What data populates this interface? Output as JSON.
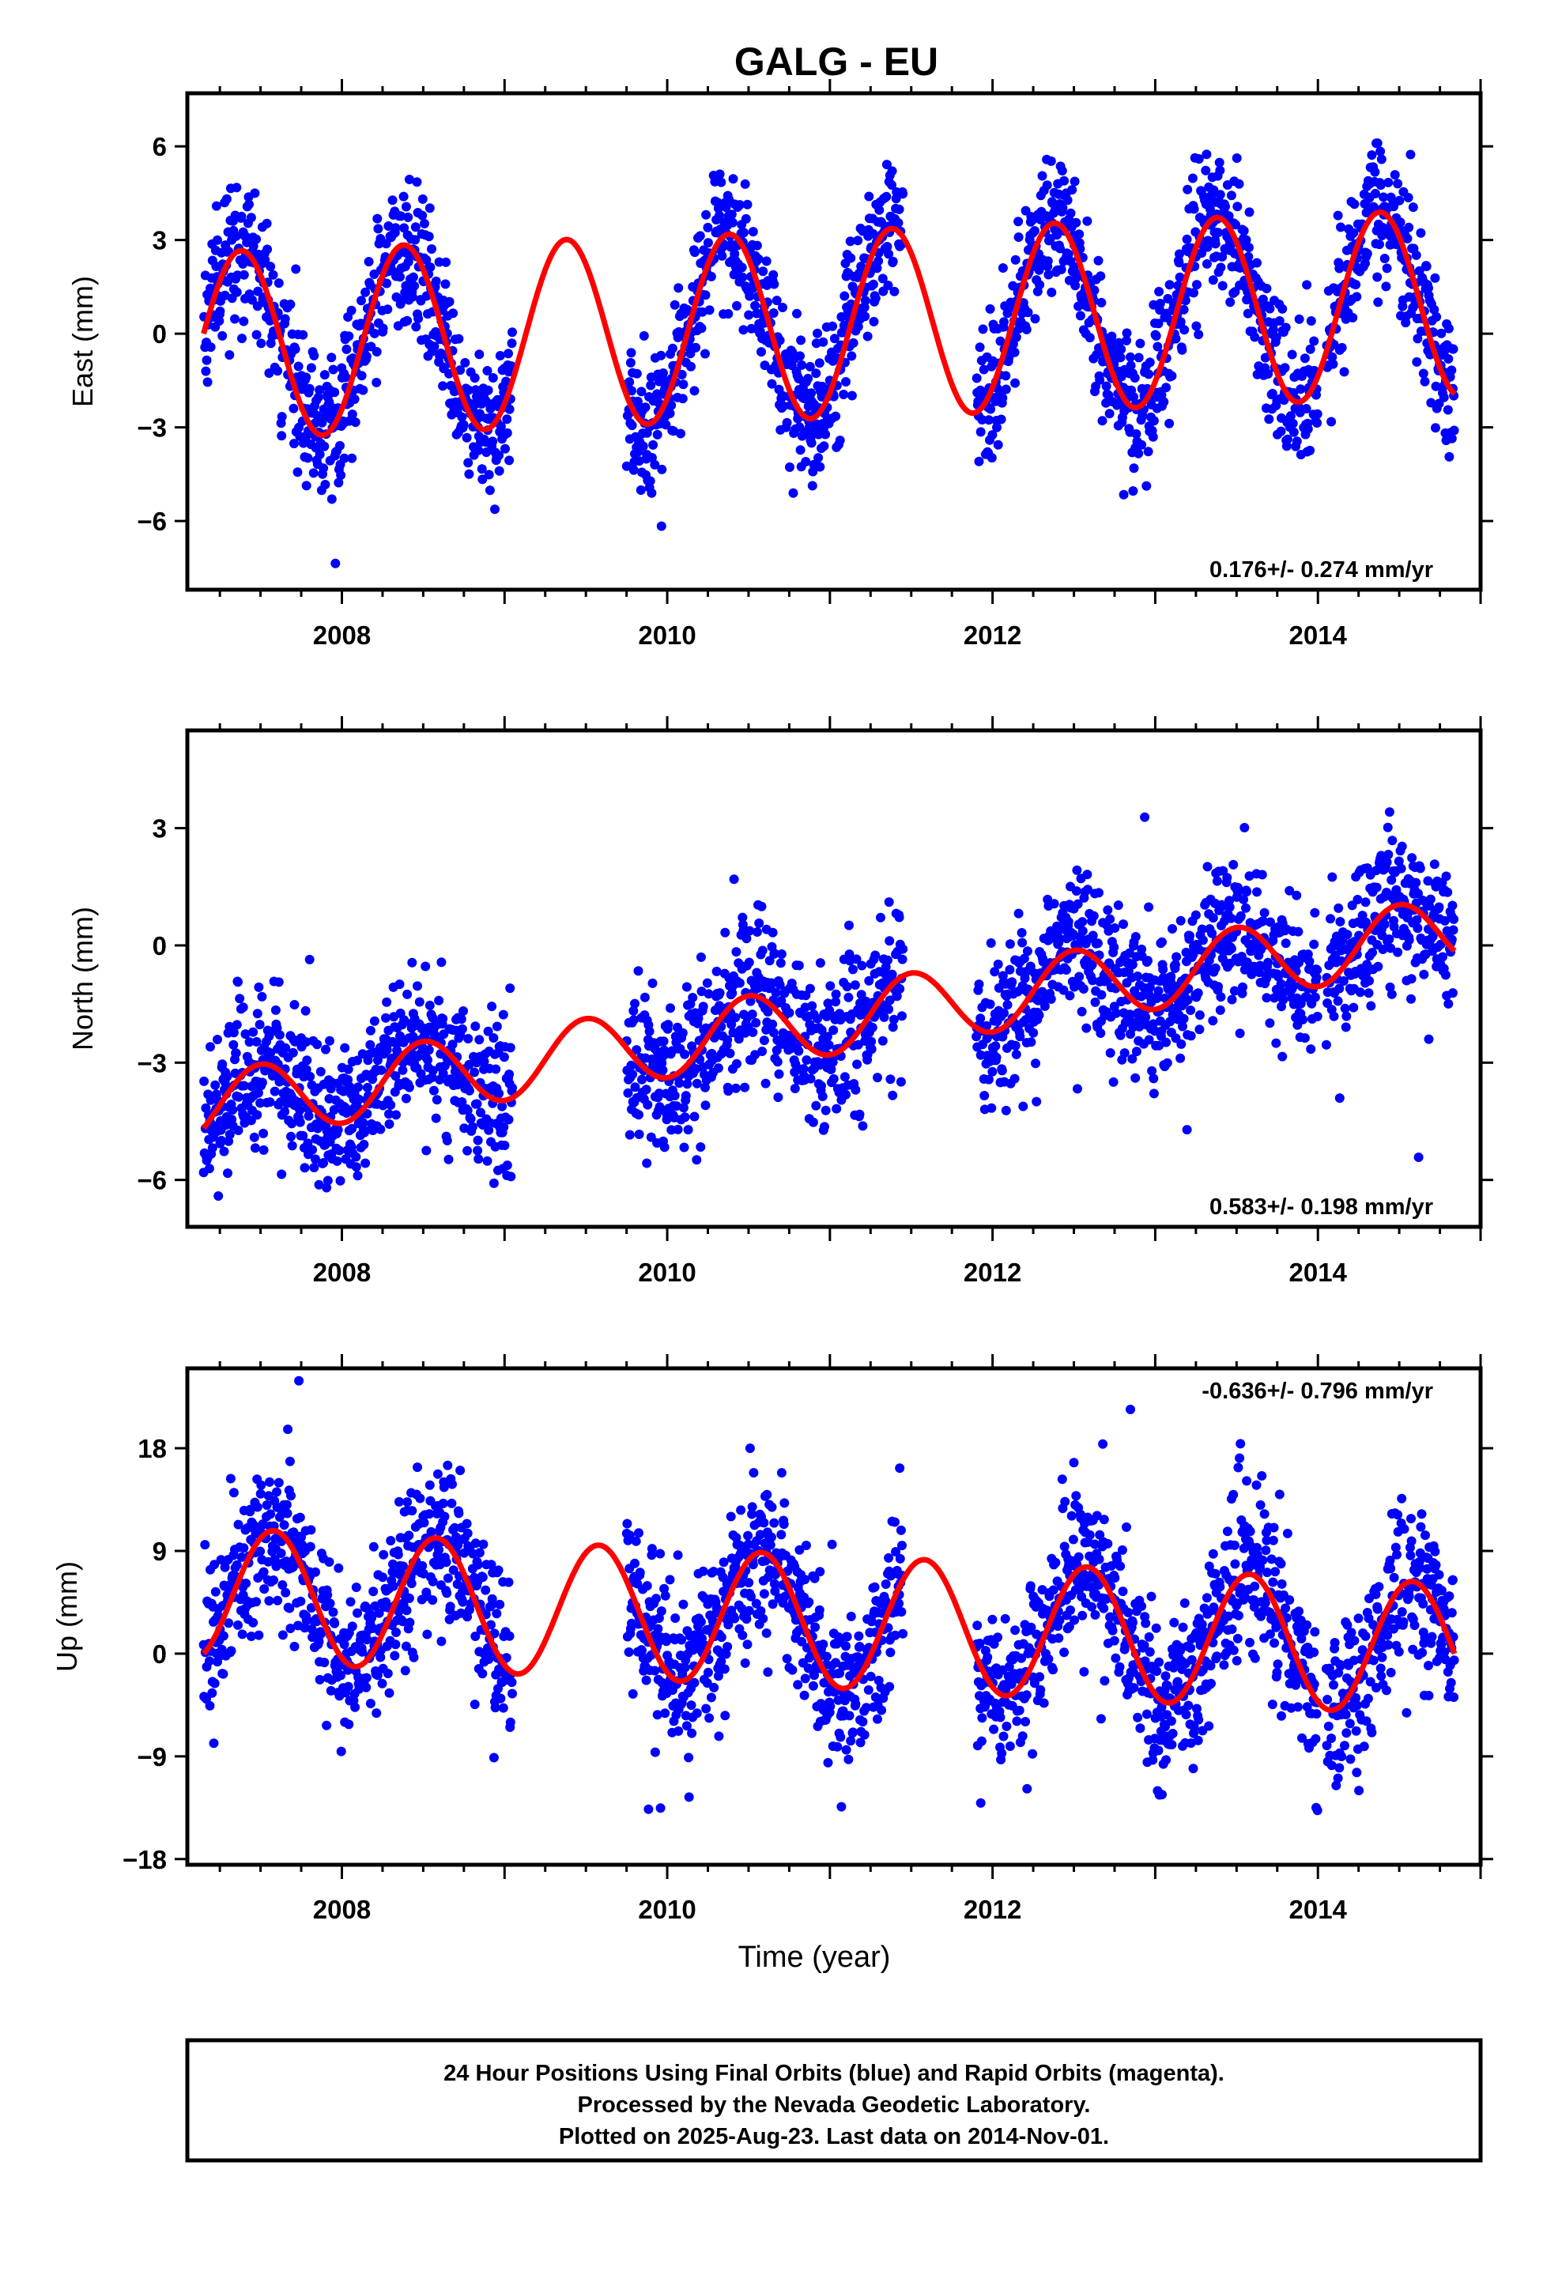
{
  "figure": {
    "title": "GALG - EU",
    "footer": [
      "24 Hour Positions Using Final Orbits (blue) and Rapid Orbits (magenta).",
      "Processed by the Nevada Geodetic Laboratory.",
      "Plotted on 2025-Aug-23. Last data on 2014-Nov-01."
    ]
  },
  "colors": {
    "points": "#0000ff",
    "model": "#ff0000",
    "axes": "#000000"
  },
  "chart_data": [
    {
      "type": "scatter",
      "component": "east",
      "ylabel": "East (mm)",
      "xlabel": "",
      "xlim": [
        2007.05,
        2015.0
      ],
      "ylim": [
        -8.2,
        7.7
      ],
      "xticks": [
        2008,
        2010,
        2012,
        2014
      ],
      "yticks": [
        -6,
        -3,
        0,
        3,
        6
      ],
      "ytick_labels": [
        "−6",
        "−3",
        "0",
        "3",
        "6"
      ],
      "rate_label": "0.176+/- 0.274 mm/yr",
      "rate_position": "bottom-right",
      "data_gaps": [
        [
          2009.05,
          2009.75
        ],
        [
          2011.45,
          2011.9
        ],
        [
          2014.0,
          2014.05
        ]
      ],
      "series": [
        {
          "kind": "points",
          "note": "daily positions, ~2400 samples from 2007.15 to 2014.84",
          "x_start": 2007.15,
          "x_end": 2014.84,
          "model": {
            "offset": 0.3,
            "trend_mm_per_yr": 0.176,
            "amplitude": 3.0,
            "peak_phase": 0.38,
            "scatter_sd": 1.1
          }
        },
        {
          "kind": "model_curve",
          "x_start": 2007.15,
          "x_end": 2014.84,
          "model": {
            "offset": 0.3,
            "trend_mm_per_yr": 0.176,
            "amplitude": 3.0,
            "peak_phase": 0.38
          }
        }
      ]
    },
    {
      "type": "scatter",
      "component": "north",
      "ylabel": "North (mm)",
      "xlabel": "",
      "xlim": [
        2007.05,
        2015.0
      ],
      "ylim": [
        -7.2,
        5.5
      ],
      "xticks": [
        2008,
        2010,
        2012,
        2014
      ],
      "yticks": [
        -6,
        -3,
        0,
        3
      ],
      "ytick_labels": [
        "−6",
        "−3",
        "0",
        "3"
      ],
      "rate_label": "0.583+/- 0.198 mm/yr",
      "rate_position": "bottom-right",
      "data_gaps": [
        [
          2009.05,
          2009.75
        ],
        [
          2011.45,
          2011.9
        ],
        [
          2014.0,
          2014.05
        ]
      ],
      "series": [
        {
          "kind": "points",
          "note": "daily positions, ~2400 samples from 2007.15 to 2014.84",
          "x_start": 2007.15,
          "x_end": 2014.84,
          "model": {
            "offset": -1.9,
            "trend_mm_per_yr": 0.583,
            "amplitude": 0.9,
            "peak_phase": 0.5,
            "scatter_sd": 0.95
          }
        },
        {
          "kind": "model_curve",
          "x_start": 2007.15,
          "x_end": 2014.84,
          "model": {
            "offset": -1.9,
            "trend_mm_per_yr": 0.583,
            "amplitude": 0.9,
            "peak_phase": 0.5
          }
        }
      ]
    },
    {
      "type": "scatter",
      "component": "up",
      "ylabel": "Up (mm)",
      "xlabel": "Time (year)",
      "xlim": [
        2007.05,
        2015.0
      ],
      "ylim": [
        -18.5,
        25.0
      ],
      "xticks": [
        2008,
        2010,
        2012,
        2014
      ],
      "yticks": [
        -18,
        -9,
        0,
        9,
        18
      ],
      "ytick_labels": [
        "−18",
        "−9",
        "0",
        "9",
        "18"
      ],
      "rate_label": "-0.636+/- 0.796 mm/yr",
      "rate_position": "top-right",
      "data_gaps": [
        [
          2009.05,
          2009.75
        ],
        [
          2011.45,
          2011.9
        ],
        [
          2014.0,
          2014.05
        ]
      ],
      "series": [
        {
          "kind": "points",
          "note": "daily positions, ~2400 samples from 2007.15 to 2014.84",
          "x_start": 2007.15,
          "x_end": 2014.84,
          "model": {
            "offset": 2.8,
            "trend_mm_per_yr": -0.636,
            "amplitude": 5.8,
            "peak_phase": 0.58,
            "scatter_sd": 3.6
          }
        },
        {
          "kind": "model_curve",
          "x_start": 2007.15,
          "x_end": 2014.84,
          "model": {
            "offset": 2.8,
            "trend_mm_per_yr": -0.636,
            "amplitude": 5.8,
            "peak_phase": 0.58
          }
        }
      ]
    }
  ]
}
